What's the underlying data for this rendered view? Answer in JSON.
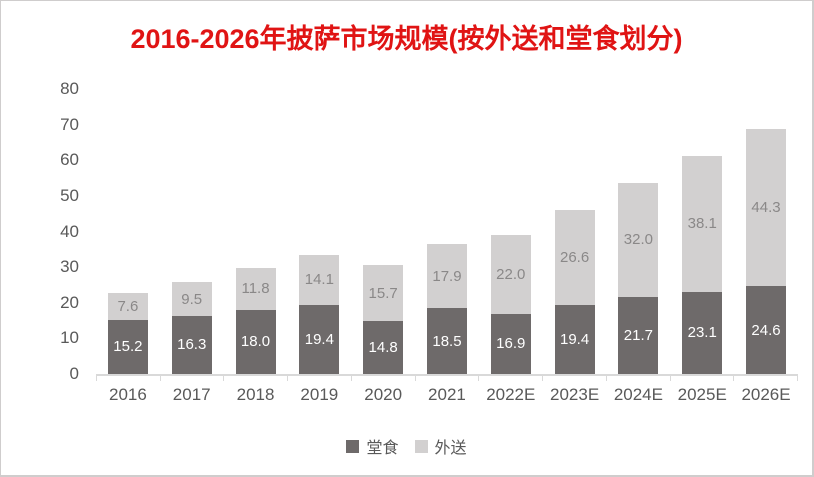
{
  "title": {
    "text": "2016-2026年披萨市场规模(按外送和堂食划分)",
    "color": "#e01414"
  },
  "chart_data": {
    "type": "bar",
    "stacked": true,
    "title": "2016-2026年披萨市场规模(按外送和堂食划分)",
    "categories": [
      "2016",
      "2017",
      "2018",
      "2019",
      "2020",
      "2021",
      "2022E",
      "2023E",
      "2024E",
      "2025E",
      "2026E"
    ],
    "series": [
      {
        "name": "堂食",
        "color": "#6e6a6a",
        "label_color": "#ffffff",
        "values": [
          15.2,
          16.3,
          18.0,
          19.4,
          14.8,
          18.5,
          16.9,
          19.4,
          21.7,
          23.1,
          24.6
        ]
      },
      {
        "name": "外送",
        "color": "#d2d0d0",
        "label_color": "#8a8888",
        "values": [
          7.6,
          9.5,
          11.8,
          14.1,
          15.7,
          17.9,
          22.0,
          26.6,
          32.0,
          38.1,
          44.3
        ]
      }
    ],
    "xlabel": "",
    "ylabel": "",
    "ylim": [
      0,
      80
    ],
    "y_ticks": [
      0,
      10,
      20,
      30,
      40,
      50,
      60,
      70,
      80
    ],
    "grid": false,
    "legend_position": "bottom",
    "axis_text_color": "#595959",
    "axis_line_color": "#d9d9d9"
  }
}
